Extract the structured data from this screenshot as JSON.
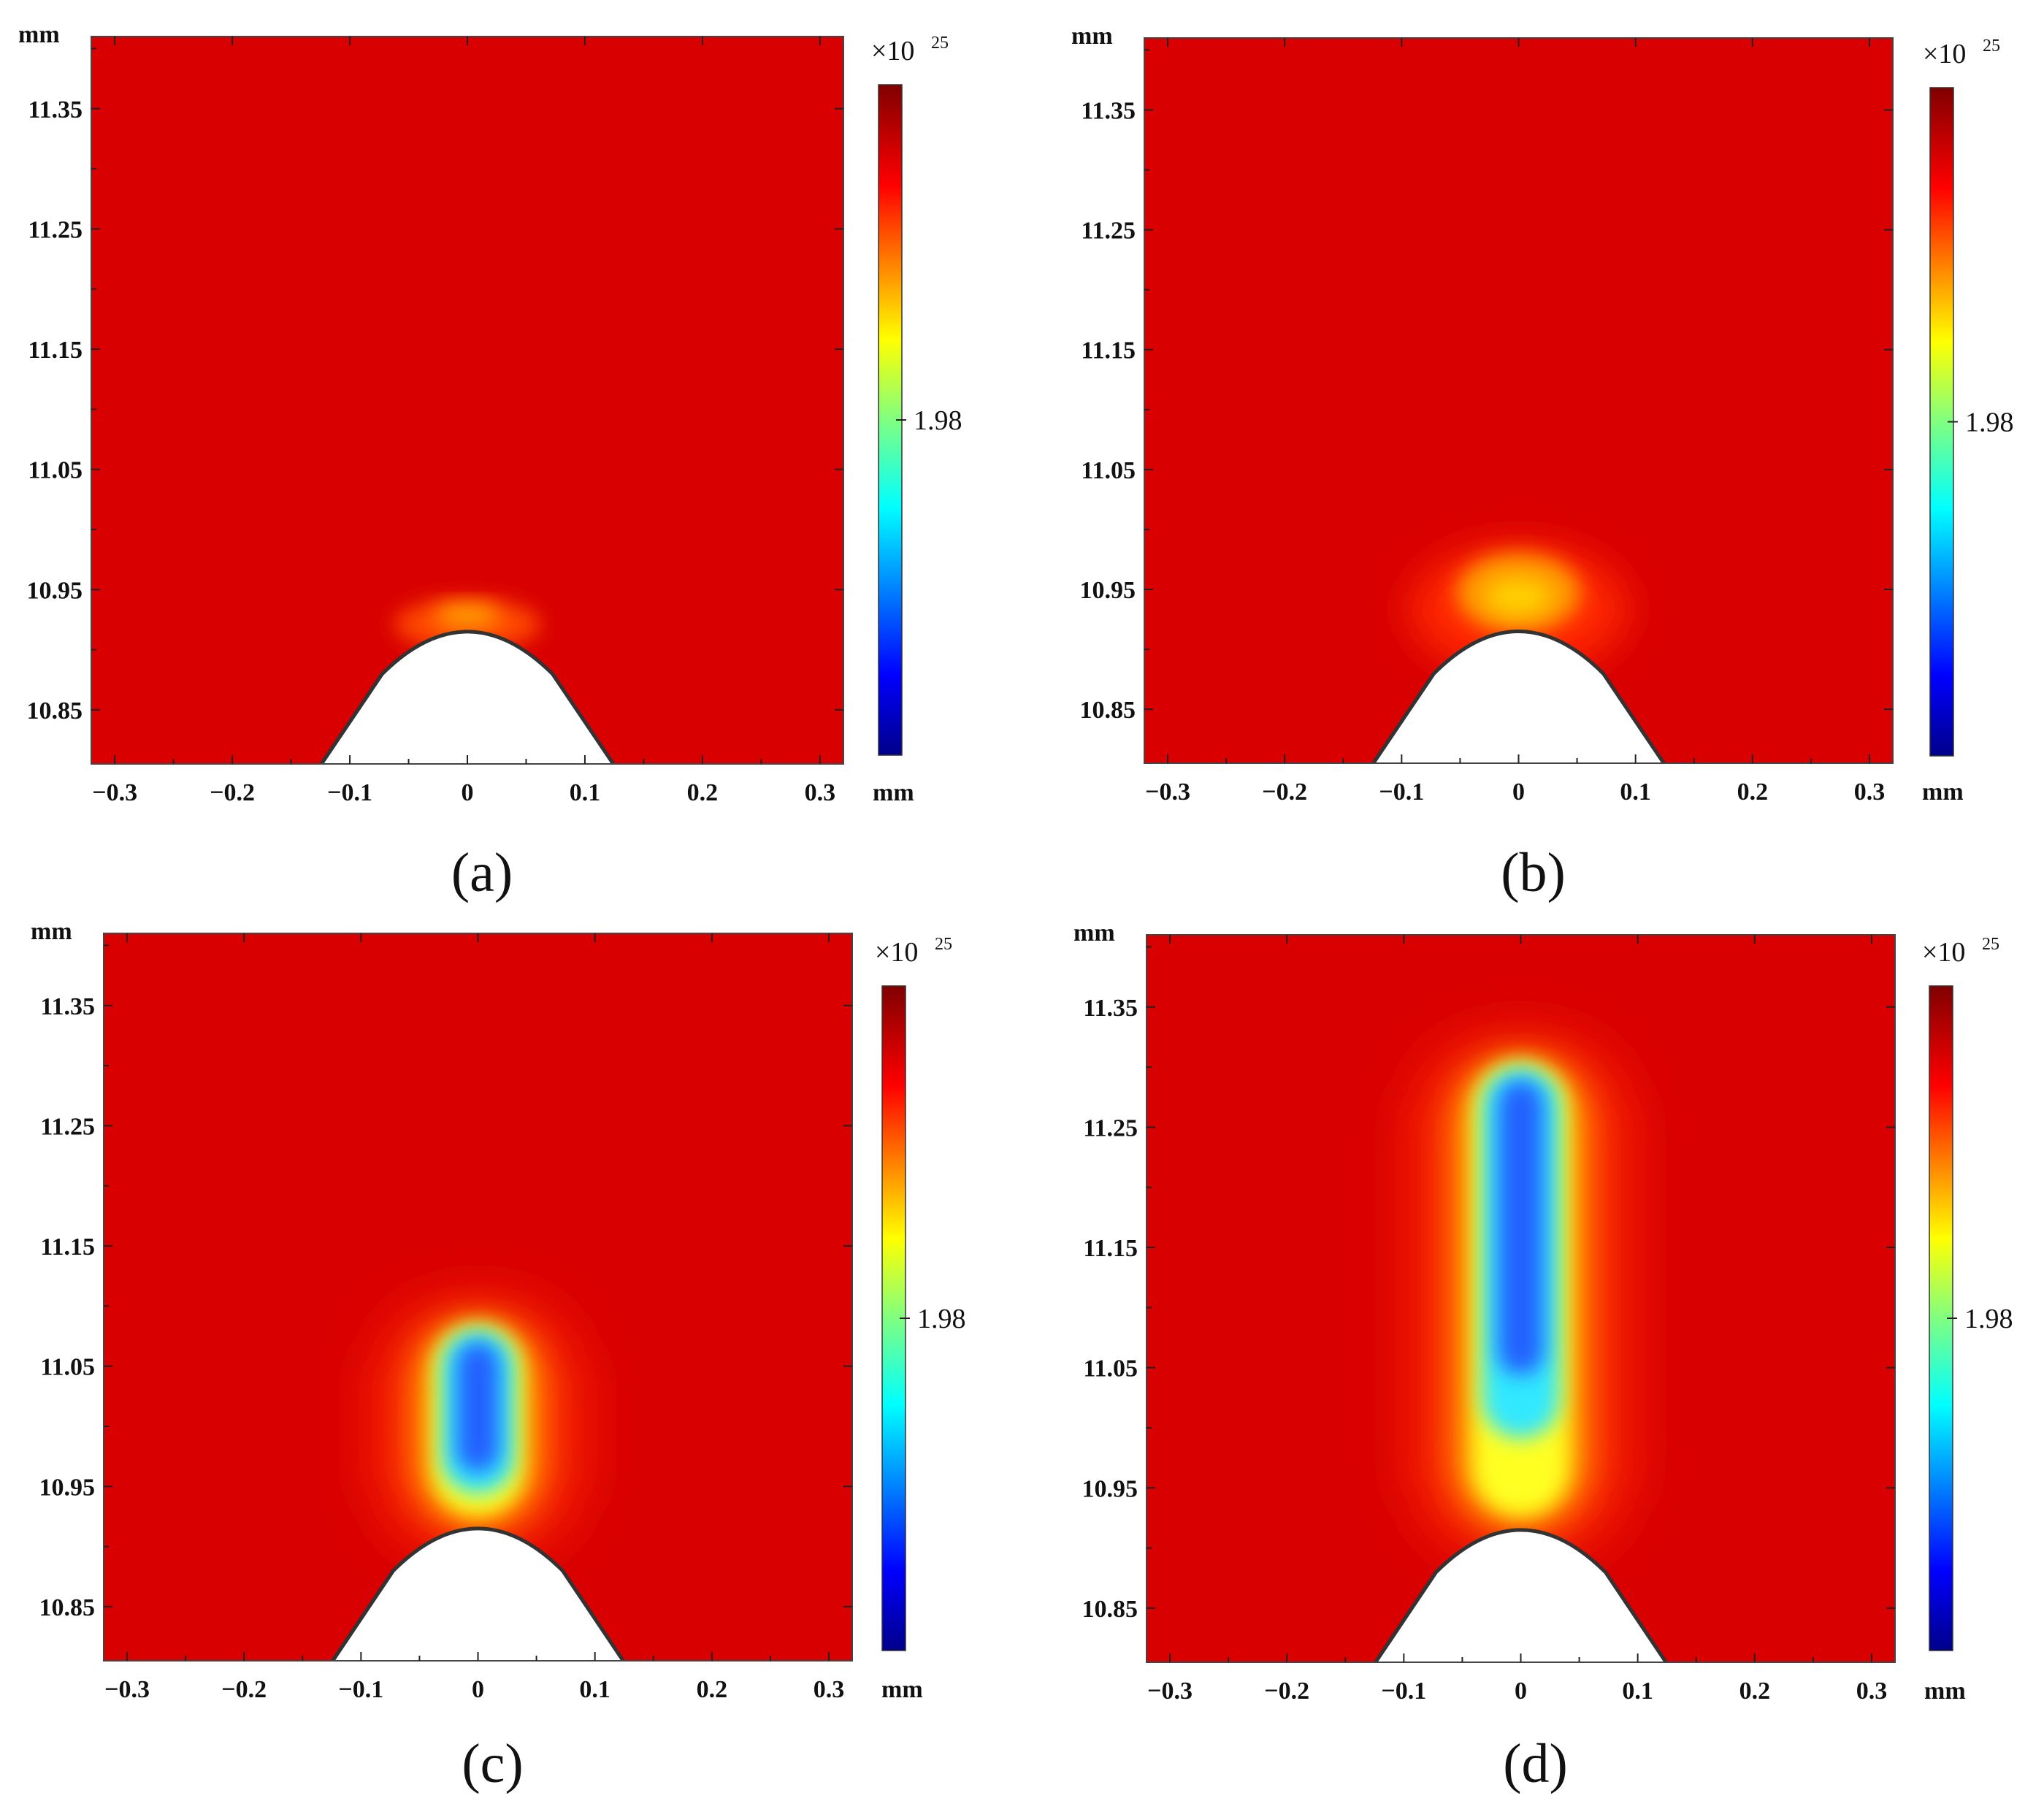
{
  "chart_data": [
    {
      "type": "heatmap",
      "panel": "(a)",
      "x_ticks": [
        "−0.3",
        "−0.2",
        "−0.1",
        "0",
        "0.1",
        "0.2",
        "0.3"
      ],
      "x_values": [
        -0.3,
        -0.2,
        -0.1,
        0,
        0.1,
        0.2,
        0.3
      ],
      "x_unit": "mm",
      "xlim": [
        -0.32,
        0.32
      ],
      "y_ticks": [
        "11.35",
        "11.25",
        "11.15",
        "11.05",
        "10.95",
        "10.85"
      ],
      "y_values": [
        11.35,
        11.25,
        11.15,
        11.05,
        10.95,
        10.85
      ],
      "y_unit": "mm",
      "ylim": [
        10.805,
        11.41
      ],
      "colorbar": {
        "multiplier": "×10",
        "exponent": "25",
        "tick_label": "1.98",
        "colormap": "jet"
      },
      "tip": {
        "x": 0,
        "y": 10.915,
        "base_halfwidth": 0.125
      },
      "streamer": {
        "head_y": 10.925,
        "radius": 0.045,
        "core": "none"
      }
    },
    {
      "type": "heatmap",
      "panel": "(b)",
      "x_ticks": [
        "−0.3",
        "−0.2",
        "−0.1",
        "0",
        "0.1",
        "0.2",
        "0.3"
      ],
      "x_values": [
        -0.3,
        -0.2,
        -0.1,
        0,
        0.1,
        0.2,
        0.3
      ],
      "x_unit": "mm",
      "xlim": [
        -0.32,
        0.32
      ],
      "y_ticks": [
        "11.35",
        "11.25",
        "11.15",
        "11.05",
        "10.95",
        "10.85"
      ],
      "y_values": [
        11.35,
        11.25,
        11.15,
        11.05,
        10.95,
        10.85
      ],
      "y_unit": "mm",
      "ylim": [
        10.805,
        11.41
      ],
      "colorbar": {
        "multiplier": "×10",
        "exponent": "25",
        "tick_label": "1.98",
        "colormap": "jet"
      },
      "tip": {
        "x": 0,
        "y": 10.915,
        "base_halfwidth": 0.125
      },
      "streamer": {
        "head_y": 10.95,
        "radius": 0.05,
        "core": "yellow"
      }
    },
    {
      "type": "heatmap",
      "panel": "(c)",
      "x_ticks": [
        "−0.3",
        "−0.2",
        "−0.1",
        "0",
        "0.1",
        "0.2",
        "0.3"
      ],
      "x_values": [
        -0.3,
        -0.2,
        -0.1,
        0,
        0.1,
        0.2,
        0.3
      ],
      "x_unit": "mm",
      "xlim": [
        -0.32,
        0.32
      ],
      "y_ticks": [
        "11.35",
        "11.25",
        "11.15",
        "11.05",
        "10.95",
        "10.85"
      ],
      "y_values": [
        11.35,
        11.25,
        11.15,
        11.05,
        10.95,
        10.85
      ],
      "y_unit": "mm",
      "ylim": [
        10.805,
        11.41
      ],
      "colorbar": {
        "multiplier": "×10",
        "exponent": "25",
        "tick_label": "1.98",
        "colormap": "jet"
      },
      "tip": {
        "x": 0,
        "y": 10.915,
        "base_halfwidth": 0.125
      },
      "streamer": {
        "head_y": 11.09,
        "radius": 0.033,
        "core": "blue"
      }
    },
    {
      "type": "heatmap",
      "panel": "(d)",
      "x_ticks": [
        "−0.3",
        "−0.2",
        "−0.1",
        "0",
        "0.1",
        "0.2",
        "0.3"
      ],
      "x_values": [
        -0.3,
        -0.2,
        -0.1,
        0,
        0.1,
        0.2,
        0.3
      ],
      "x_unit": "mm",
      "xlim": [
        -0.32,
        0.32
      ],
      "y_ticks": [
        "11.35",
        "11.25",
        "11.15",
        "11.05",
        "10.95",
        "10.85"
      ],
      "y_values": [
        11.35,
        11.25,
        11.15,
        11.05,
        10.95,
        10.85
      ],
      "y_unit": "mm",
      "ylim": [
        10.805,
        11.41
      ],
      "colorbar": {
        "multiplier": "×10",
        "exponent": "25",
        "tick_label": "1.98",
        "colormap": "jet"
      },
      "tip": {
        "x": 0,
        "y": 10.915,
        "base_halfwidth": 0.125
      },
      "streamer": {
        "head_y": 11.31,
        "radius": 0.035,
        "core": "blue"
      }
    }
  ],
  "colors": {
    "background_field": "#d80000",
    "tip_fill": "#ffffff",
    "tip_edge": "#333333",
    "colormap_stops": [
      "#000a80",
      "#0000ff",
      "#00ffff",
      "#ffff00",
      "#ff0000",
      "#800000"
    ]
  }
}
